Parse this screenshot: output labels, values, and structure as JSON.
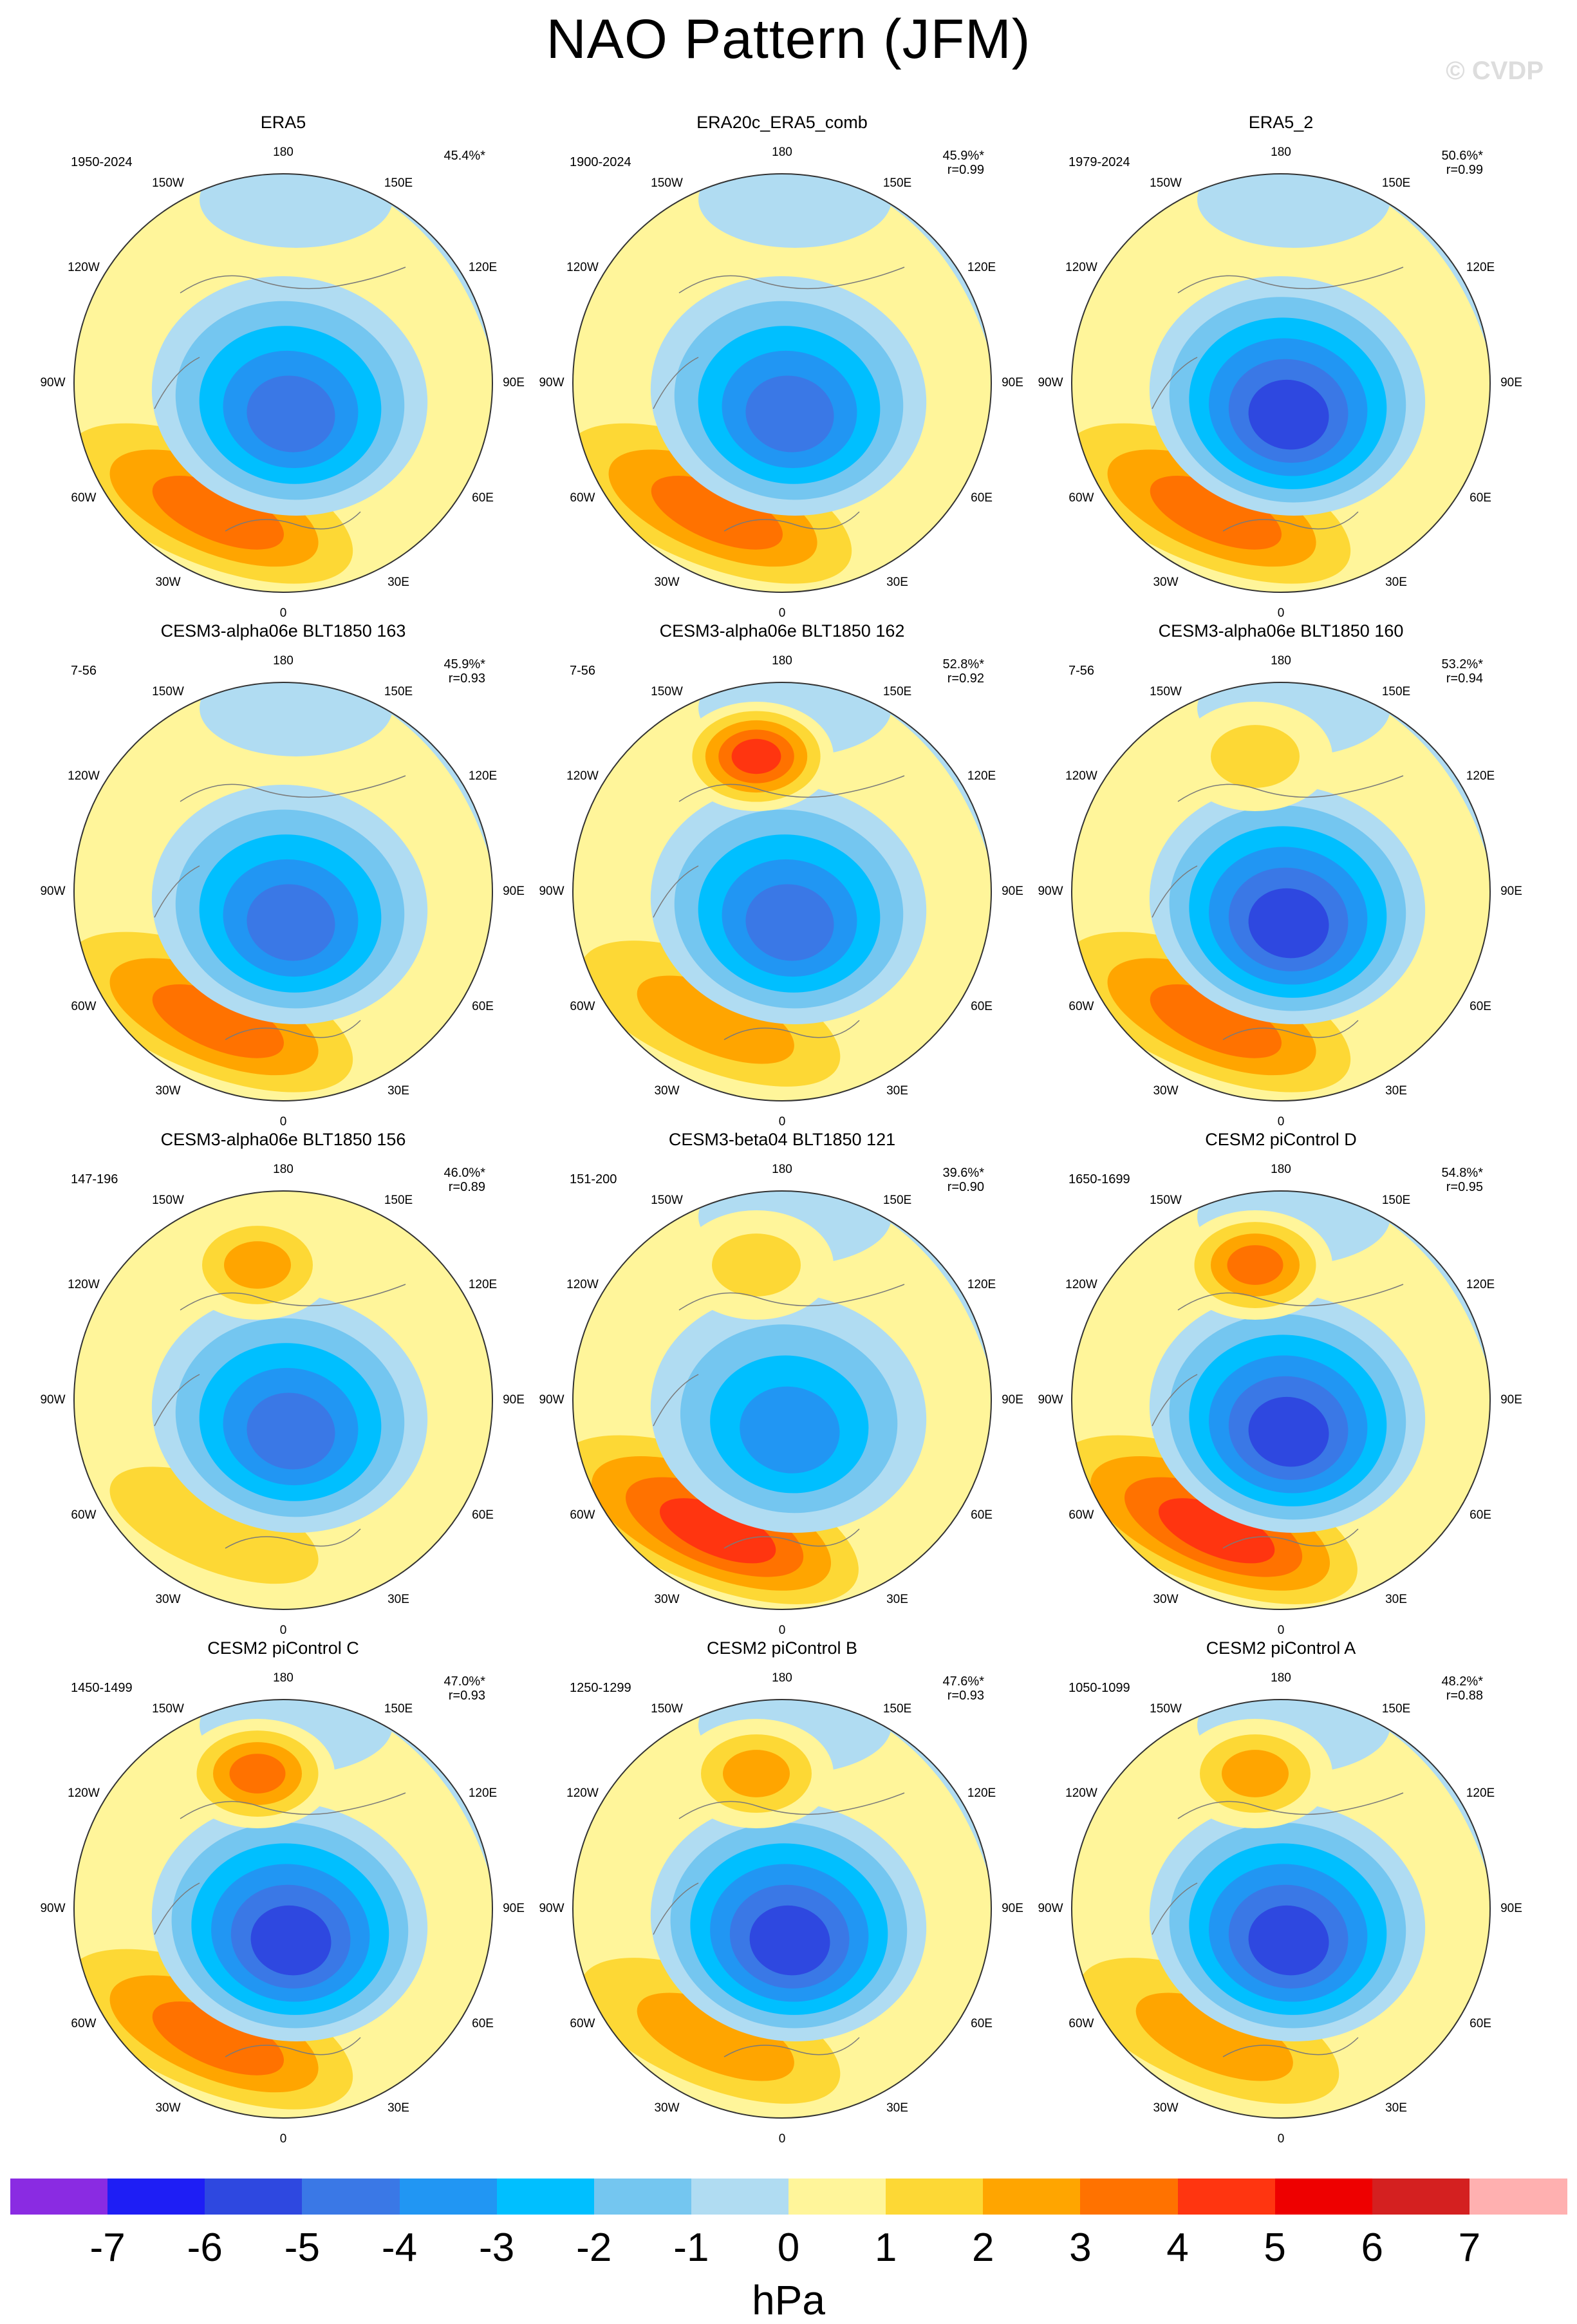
{
  "title": "NAO Pattern (JFM)",
  "watermark": "© CVDP",
  "longitude_labels": [
    "180",
    "150E",
    "120E",
    "90E",
    "60E",
    "30E",
    "0",
    "30W",
    "60W",
    "90W",
    "120W",
    "150W"
  ],
  "colorbar": {
    "units": "hPa",
    "ticks": [
      "-7",
      "-6",
      "-5",
      "-4",
      "-3",
      "-2",
      "-1",
      "0",
      "1",
      "2",
      "3",
      "4",
      "5",
      "6",
      "7"
    ],
    "colors": [
      "#8a2be2",
      "#1e1ef5",
      "#2e48e0",
      "#3a78e6",
      "#2196f3",
      "#00bfff",
      "#74c6f0",
      "#b0dcf2",
      "#fff59a",
      "#fdd835",
      "#ffa500",
      "#ff7200",
      "#ff3510",
      "#ee0000",
      "#d42020",
      "#ffb0b0"
    ]
  },
  "chart_data": {
    "type": "heatmap",
    "title": "NAO Pattern (JFM)",
    "units": "hPa",
    "levels": [
      -7,
      -6,
      -5,
      -4,
      -3,
      -2,
      -1,
      0,
      1,
      2,
      3,
      4,
      5,
      6,
      7
    ],
    "projection": "polar stereographic, Northern Hemisphere",
    "panels": [
      {
        "title": "ERA5",
        "years": "1950-2024",
        "pct": "45.4%*",
        "r": "",
        "atl_low": -5,
        "atl_high": 4,
        "pac_high": 0,
        "pac_low": -1
      },
      {
        "title": "ERA20c_ERA5_comb",
        "years": "1900-2024",
        "pct": "45.9%*",
        "r": "r=0.99",
        "atl_low": -5,
        "atl_high": 4,
        "pac_high": 0,
        "pac_low": -1
      },
      {
        "title": "ERA5_2",
        "years": "1979-2024",
        "pct": "50.6%*",
        "r": "r=0.99",
        "atl_low": -6,
        "atl_high": 4,
        "pac_high": 0,
        "pac_low": -1
      },
      {
        "title": "CESM3-alpha06e BLT1850 163",
        "years": "7-56",
        "pct": "45.9%*",
        "r": "r=0.93",
        "atl_low": -5,
        "atl_high": 4,
        "pac_high": 0,
        "pac_low": -1
      },
      {
        "title": "CESM3-alpha06e BLT1850 162",
        "years": "7-56",
        "pct": "52.8%*",
        "r": "r=0.92",
        "atl_low": -5,
        "atl_high": 3,
        "pac_high": 5,
        "pac_low": -1
      },
      {
        "title": "CESM3-alpha06e BLT1850 160",
        "years": "7-56",
        "pct": "53.2%*",
        "r": "r=0.94",
        "atl_low": -6,
        "atl_high": 4,
        "pac_high": 2,
        "pac_low": -1
      },
      {
        "title": "CESM3-alpha06e BLT1850 156",
        "years": "147-196",
        "pct": "46.0%*",
        "r": "r=0.89",
        "atl_low": -5,
        "atl_high": 2,
        "pac_high": 3,
        "pac_low": 0
      },
      {
        "title": "CESM3-beta04 BLT1850 121",
        "years": "151-200",
        "pct": "39.6%*",
        "r": "r=0.90",
        "atl_low": -4,
        "atl_high": 5,
        "pac_high": 2,
        "pac_low": -1
      },
      {
        "title": "CESM2 piControl D",
        "years": "1650-1699",
        "pct": "54.8%*",
        "r": "r=0.95",
        "atl_low": -6,
        "atl_high": 5,
        "pac_high": 4,
        "pac_low": -1
      },
      {
        "title": "CESM2 piControl C",
        "years": "1450-1499",
        "pct": "47.0%*",
        "r": "r=0.93",
        "atl_low": -6,
        "atl_high": 4,
        "pac_high": 4,
        "pac_low": -1
      },
      {
        "title": "CESM2 piControl B",
        "years": "1250-1299",
        "pct": "47.6%*",
        "r": "r=0.93",
        "atl_low": -6,
        "atl_high": 3,
        "pac_high": 3,
        "pac_low": -1
      },
      {
        "title": "CESM2 piControl A",
        "years": "1050-1099",
        "pct": "48.2%*",
        "r": "r=0.88",
        "atl_low": -6,
        "atl_high": 3,
        "pac_high": 3,
        "pac_low": -1
      }
    ]
  }
}
